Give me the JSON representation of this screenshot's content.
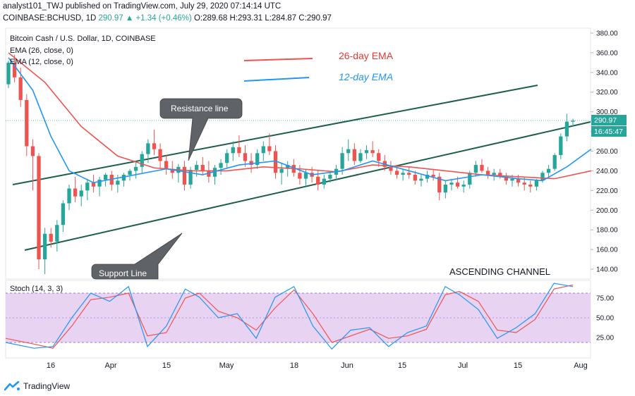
{
  "header": {
    "line1": "analyst101_TWJ published on TradingView.com, July 29, 2020 07:14:14 UTC",
    "symbol": "COINBASE:BCHUSD, 1D",
    "last": "290.97",
    "change": "▲ +1.34 (+0.46%)",
    "ohlc": "O:289.68 H:293.31 L:284.87 C:290.97"
  },
  "legend": {
    "title": "Bitcoin Cash / U.S. Dollar, 1D, COINBASE",
    "ema26": "EMA (26, close, 0)",
    "ema12": "EMA (12, close, 0)",
    "ema26_label": "26-day EMA",
    "ema12_label": "12-day EMA"
  },
  "annotations": {
    "resistance": "Resistance line",
    "support": "Support Line",
    "channel": "ASCENDING CHANNEL"
  },
  "price_tag": "290.97",
  "countdown_tag": "16:45:47",
  "stoch_label": "Stoch (14, 3, 3)",
  "footer": {
    "brand": "TradingView"
  },
  "colors": {
    "up": "#26a69a",
    "down": "#ef5350",
    "ema26": "#ef5350",
    "ema12": "#2196f3",
    "channel": "#1b5e4a",
    "stoch_fill": "#e1bee7",
    "stoch_k": "#2196f3",
    "stoch_d": "#ef5350"
  },
  "chart_data": {
    "type": "candlestick",
    "price_axis": {
      "ylim": [
        130,
        385
      ],
      "ticks": [
        140,
        160,
        180,
        200,
        220,
        240,
        260,
        280,
        300,
        320,
        340,
        360,
        380
      ]
    },
    "stoch_axis": {
      "ylim": [
        0,
        100
      ],
      "ticks": [
        25,
        50,
        75
      ],
      "bands": [
        20,
        80
      ]
    },
    "x_labels": [
      "16",
      "Apr",
      "15",
      "May",
      "18",
      "Jun",
      "15",
      "Jul",
      "15",
      "Aug"
    ],
    "candles": [
      [
        328,
        352,
        324,
        350
      ],
      [
        350,
        358,
        330,
        335
      ],
      [
        335,
        345,
        305,
        312
      ],
      [
        312,
        318,
        255,
        265
      ],
      [
        265,
        272,
        220,
        255
      ],
      [
        255,
        258,
        140,
        150
      ],
      [
        150,
        182,
        135,
        176
      ],
      [
        176,
        182,
        162,
        168
      ],
      [
        168,
        190,
        158,
        185
      ],
      [
        185,
        210,
        178,
        207
      ],
      [
        207,
        226,
        200,
        222
      ],
      [
        222,
        234,
        208,
        214
      ],
      [
        214,
        226,
        204,
        220
      ],
      [
        220,
        232,
        210,
        228
      ],
      [
        228,
        236,
        218,
        224
      ],
      [
        224,
        234,
        214,
        231
      ],
      [
        231,
        238,
        224,
        236
      ],
      [
        236,
        240,
        220,
        226
      ],
      [
        226,
        236,
        218,
        230
      ],
      [
        230,
        238,
        224,
        236
      ],
      [
        236,
        242,
        230,
        240
      ],
      [
        240,
        250,
        232,
        244
      ],
      [
        244,
        260,
        238,
        257
      ],
      [
        257,
        272,
        248,
        268
      ],
      [
        268,
        282,
        256,
        262
      ],
      [
        262,
        268,
        242,
        250
      ],
      [
        250,
        256,
        236,
        242
      ],
      [
        242,
        250,
        232,
        238
      ],
      [
        238,
        247,
        228,
        244
      ],
      [
        244,
        250,
        220,
        226
      ],
      [
        226,
        244,
        222,
        241
      ],
      [
        241,
        250,
        234,
        246
      ],
      [
        246,
        254,
        236,
        240
      ],
      [
        240,
        250,
        228,
        234
      ],
      [
        234,
        246,
        226,
        243
      ],
      [
        243,
        252,
        236,
        248
      ],
      [
        248,
        262,
        242,
        258
      ],
      [
        258,
        270,
        250,
        264
      ],
      [
        264,
        276,
        254,
        258
      ],
      [
        258,
        266,
        244,
        250
      ],
      [
        250,
        258,
        238,
        246
      ],
      [
        246,
        262,
        242,
        258
      ],
      [
        258,
        270,
        250,
        265
      ],
      [
        265,
        278,
        256,
        260
      ],
      [
        260,
        266,
        232,
        238
      ],
      [
        238,
        248,
        226,
        242
      ],
      [
        242,
        250,
        234,
        246
      ],
      [
        246,
        252,
        234,
        238
      ],
      [
        238,
        246,
        226,
        232
      ],
      [
        232,
        242,
        224,
        238
      ],
      [
        238,
        244,
        228,
        234
      ],
      [
        234,
        240,
        220,
        226
      ],
      [
        226,
        236,
        222,
        232
      ],
      [
        232,
        240,
        228,
        236
      ],
      [
        236,
        246,
        230,
        242
      ],
      [
        242,
        264,
        236,
        258
      ],
      [
        258,
        272,
        250,
        262
      ],
      [
        262,
        268,
        246,
        250
      ],
      [
        250,
        262,
        248,
        258
      ],
      [
        258,
        266,
        252,
        261
      ],
      [
        261,
        270,
        254,
        258
      ],
      [
        258,
        262,
        244,
        250
      ],
      [
        250,
        256,
        240,
        244
      ],
      [
        244,
        250,
        236,
        240
      ],
      [
        240,
        246,
        232,
        236
      ],
      [
        236,
        242,
        230,
        238
      ],
      [
        238,
        244,
        232,
        236
      ],
      [
        236,
        240,
        226,
        230
      ],
      [
        230,
        236,
        224,
        232
      ],
      [
        232,
        240,
        228,
        236
      ],
      [
        236,
        242,
        230,
        234
      ],
      [
        234,
        238,
        210,
        218
      ],
      [
        218,
        230,
        212,
        226
      ],
      [
        226,
        232,
        220,
        228
      ],
      [
        228,
        234,
        222,
        224
      ],
      [
        224,
        230,
        218,
        226
      ],
      [
        226,
        240,
        222,
        238
      ],
      [
        238,
        250,
        234,
        246
      ],
      [
        246,
        252,
        238,
        240
      ],
      [
        240,
        244,
        232,
        236
      ],
      [
        236,
        242,
        230,
        238
      ],
      [
        238,
        242,
        232,
        234
      ],
      [
        234,
        238,
        226,
        230
      ],
      [
        230,
        236,
        224,
        232
      ],
      [
        232,
        236,
        224,
        228
      ],
      [
        228,
        234,
        220,
        226
      ],
      [
        226,
        230,
        218,
        224
      ],
      [
        224,
        232,
        220,
        230
      ],
      [
        230,
        240,
        228,
        238
      ],
      [
        238,
        246,
        234,
        242
      ],
      [
        242,
        258,
        240,
        256
      ],
      [
        256,
        278,
        252,
        275
      ],
      [
        275,
        298,
        270,
        290
      ],
      [
        290,
        293,
        285,
        291
      ]
    ],
    "ema26": [
      [
        0,
        360
      ],
      [
        6,
        330
      ],
      [
        12,
        285
      ],
      [
        18,
        255
      ],
      [
        24,
        243
      ],
      [
        30,
        240
      ],
      [
        36,
        240
      ],
      [
        42,
        244
      ],
      [
        48,
        242
      ],
      [
        54,
        239
      ],
      [
        60,
        246
      ],
      [
        66,
        244
      ],
      [
        72,
        240
      ],
      [
        78,
        236
      ],
      [
        84,
        234
      ],
      [
        90,
        232
      ],
      [
        96,
        240
      ]
    ],
    "ema12": [
      [
        0,
        355
      ],
      [
        4,
        322
      ],
      [
        7,
        275
      ],
      [
        10,
        240
      ],
      [
        14,
        228
      ],
      [
        20,
        235
      ],
      [
        26,
        242
      ],
      [
        32,
        236
      ],
      [
        38,
        246
      ],
      [
        44,
        250
      ],
      [
        50,
        236
      ],
      [
        55,
        240
      ],
      [
        60,
        250
      ],
      [
        66,
        240
      ],
      [
        72,
        230
      ],
      [
        78,
        236
      ],
      [
        84,
        232
      ],
      [
        88,
        230
      ],
      [
        92,
        244
      ],
      [
        96,
        262
      ]
    ],
    "stoch_k": [
      [
        0,
        20
      ],
      [
        6,
        13
      ],
      [
        10,
        15
      ],
      [
        14,
        50
      ],
      [
        18,
        80
      ],
      [
        22,
        70
      ],
      [
        26,
        88
      ],
      [
        30,
        15
      ],
      [
        34,
        40
      ],
      [
        38,
        85
      ],
      [
        41,
        75
      ],
      [
        45,
        50
      ],
      [
        49,
        55
      ],
      [
        53,
        25
      ],
      [
        57,
        75
      ],
      [
        61,
        88
      ],
      [
        65,
        40
      ],
      [
        69,
        12
      ],
      [
        73,
        35
      ],
      [
        77,
        38
      ],
      [
        81,
        15
      ],
      [
        85,
        32
      ],
      [
        89,
        40
      ],
      [
        93,
        88
      ],
      [
        96,
        78
      ],
      [
        100,
        60
      ],
      [
        104,
        25
      ],
      [
        108,
        38
      ],
      [
        112,
        55
      ],
      [
        116,
        92
      ],
      [
        120,
        88
      ]
    ],
    "stoch_d": [
      [
        0,
        25
      ],
      [
        6,
        18
      ],
      [
        10,
        13
      ],
      [
        14,
        40
      ],
      [
        18,
        72
      ],
      [
        22,
        75
      ],
      [
        26,
        80
      ],
      [
        30,
        28
      ],
      [
        34,
        32
      ],
      [
        38,
        74
      ],
      [
        41,
        80
      ],
      [
        45,
        58
      ],
      [
        49,
        50
      ],
      [
        53,
        35
      ],
      [
        57,
        62
      ],
      [
        61,
        84
      ],
      [
        65,
        55
      ],
      [
        69,
        20
      ],
      [
        73,
        28
      ],
      [
        77,
        36
      ],
      [
        81,
        25
      ],
      [
        85,
        28
      ],
      [
        89,
        36
      ],
      [
        93,
        78
      ],
      [
        96,
        82
      ],
      [
        100,
        70
      ],
      [
        104,
        35
      ],
      [
        108,
        32
      ],
      [
        112,
        48
      ],
      [
        116,
        85
      ],
      [
        120,
        90
      ]
    ]
  }
}
